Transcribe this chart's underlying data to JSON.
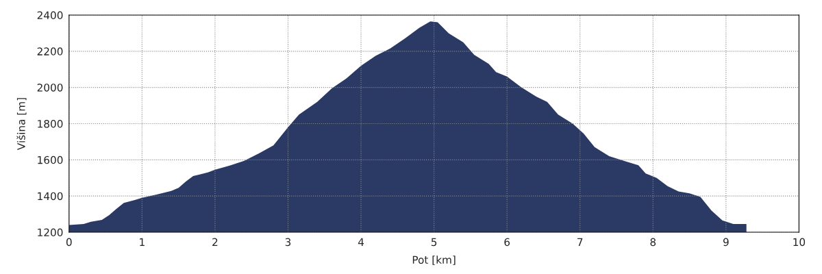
{
  "chart_data": {
    "type": "area",
    "xlabel": "Pot [km]",
    "ylabel": "Višina [m]",
    "series": [
      {
        "color": "#2b3a64",
        "x": [
          0,
          0.2,
          0.3,
          0.45,
          0.55,
          0.65,
          0.75,
          0.9,
          1.0,
          1.2,
          1.4,
          1.5,
          1.6,
          1.7,
          1.9,
          2.0,
          2.2,
          2.4,
          2.6,
          2.8,
          3.0,
          3.15,
          3.4,
          3.6,
          3.8,
          4.0,
          4.2,
          4.4,
          4.6,
          4.8,
          4.95,
          5.05,
          5.2,
          5.4,
          5.55,
          5.75,
          5.85,
          6.0,
          6.2,
          6.4,
          6.55,
          6.7,
          6.9,
          7.05,
          7.2,
          7.4,
          7.6,
          7.8,
          7.9,
          8.05,
          8.2,
          8.35,
          8.5,
          8.65,
          8.8,
          8.95,
          9.1,
          9.28
        ],
        "values": [
          1240,
          1245,
          1258,
          1268,
          1295,
          1330,
          1362,
          1378,
          1390,
          1408,
          1428,
          1445,
          1480,
          1510,
          1530,
          1545,
          1568,
          1595,
          1635,
          1680,
          1780,
          1850,
          1920,
          1995,
          2050,
          2120,
          2175,
          2215,
          2270,
          2330,
          2365,
          2360,
          2300,
          2250,
          2180,
          2130,
          2085,
          2060,
          2000,
          1950,
          1920,
          1850,
          1800,
          1745,
          1670,
          1620,
          1595,
          1570,
          1525,
          1500,
          1455,
          1425,
          1415,
          1395,
          1320,
          1265,
          1245,
          1245
        ]
      }
    ],
    "xlim": [
      0,
      10
    ],
    "xticks": [
      0,
      1,
      2,
      3,
      4,
      5,
      6,
      7,
      8,
      9,
      10
    ],
    "ylim": [
      1200,
      2400
    ],
    "yticks": [
      1200,
      1400,
      1600,
      1800,
      2000,
      2200,
      2400
    ],
    "grid": true,
    "line_style": "dotted"
  }
}
